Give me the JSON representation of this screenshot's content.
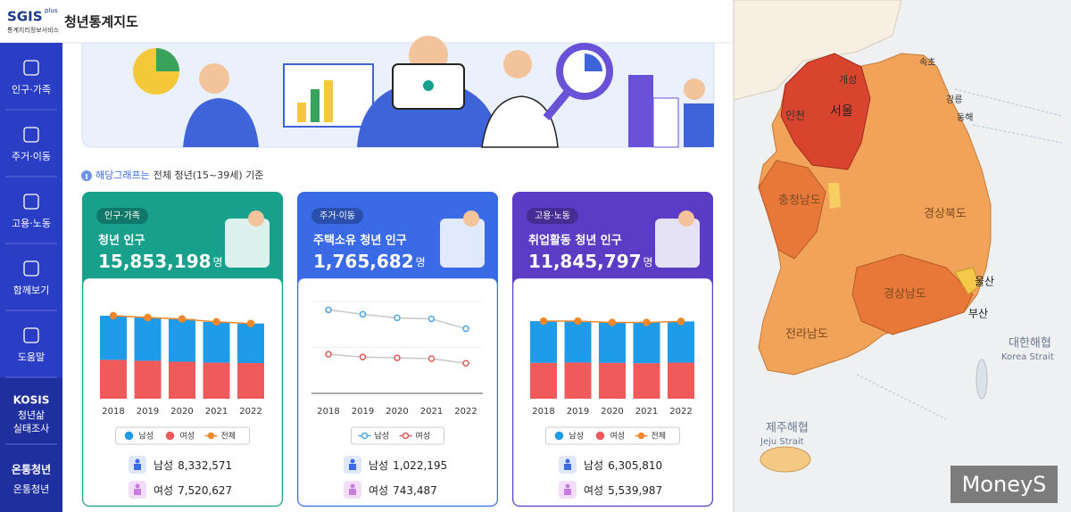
{
  "header": {
    "logo": "SGIS",
    "logo_sup": "plus",
    "logo_sub": "통계지리정보서비스",
    "title": "청년통계지도"
  },
  "sidebar": {
    "items": [
      "인구·가족",
      "주거·이동",
      "고용·노동",
      "함께보기",
      "도움말"
    ],
    "kosis": {
      "logo": "KOSIS",
      "lines": [
        "청년삶",
        "실태조사"
      ]
    },
    "ontong": {
      "logo": "온통청년",
      "label": "온통청년"
    }
  },
  "note": {
    "highlight": "해당그래프는",
    "text": "전체 청년(15~39세) 기준"
  },
  "cards": [
    {
      "tag": "인구·가족",
      "title": "청년 인구",
      "total": "15,853,198",
      "unit": "명",
      "color": "#17a08c",
      "summary": [
        {
          "label": "남성",
          "value": "8,332,571"
        },
        {
          "label": "여성",
          "value": "7,520,627"
        }
      ]
    },
    {
      "tag": "주거·이동",
      "title": "주택소유 청년 인구",
      "total": "1,765,682",
      "unit": "명",
      "color": "#3a6ae6",
      "summary": [
        {
          "label": "남성",
          "value": "1,022,195"
        },
        {
          "label": "여성",
          "value": "743,487"
        }
      ]
    },
    {
      "tag": "고용·노동",
      "title": "취업활동 청년 인구",
      "total": "11,845,797",
      "unit": "명",
      "color": "#5b3cc4",
      "summary": [
        {
          "label": "남성",
          "value": "6,305,810"
        },
        {
          "label": "여성",
          "value": "5,539,987"
        }
      ]
    }
  ],
  "chart_data": [
    {
      "type": "bar",
      "stacked": true,
      "categories": [
        "2018",
        "2019",
        "2020",
        "2021",
        "2022"
      ],
      "series": [
        {
          "name": "남성",
          "color": "#1e9be9",
          "values": [
            9300000,
            9100000,
            9000000,
            8600000,
            8332571
          ]
        },
        {
          "name": "여성",
          "color": "#f05a5a",
          "values": [
            8200000,
            8000000,
            7800000,
            7600000,
            7520627
          ]
        },
        {
          "name": "전체",
          "color": "#f0882a",
          "type": "line",
          "values": [
            17500000,
            17100000,
            16800000,
            16200000,
            15853198
          ]
        }
      ],
      "ylim": [
        0,
        22000000
      ]
    },
    {
      "type": "line",
      "categories": [
        "2018",
        "2019",
        "2020",
        "2021",
        "2022"
      ],
      "line_color": "#c8c8c8",
      "series": [
        {
          "name": "남성",
          "color": "#4aa6e0",
          "values": [
            1175000,
            1139000,
            1110000,
            1102000,
            1022195
          ]
        },
        {
          "name": "여성",
          "color": "#e05a5a",
          "values": [
            816000,
            794000,
            787000,
            780000,
            743487
          ]
        }
      ],
      "ylim": [
        500000,
        1300000
      ]
    },
    {
      "type": "bar",
      "stacked": true,
      "categories": [
        "2018",
        "2019",
        "2020",
        "2021",
        "2022"
      ],
      "series": [
        {
          "name": "남성",
          "color": "#1e9be9",
          "values": [
            6400000,
            6350000,
            6200000,
            6250000,
            6305810
          ]
        },
        {
          "name": "여성",
          "color": "#f05a5a",
          "values": [
            5500000,
            5550000,
            5500000,
            5450000,
            5539987
          ]
        },
        {
          "name": "전체",
          "color": "#f0882a",
          "type": "line",
          "values": [
            11900000,
            11900000,
            11700000,
            11700000,
            11845797
          ]
        }
      ],
      "ylim": [
        0,
        16000000
      ]
    }
  ],
  "map": {
    "labels": [
      "개성",
      "서울",
      "인천",
      "속초",
      "강릉",
      "동해",
      "경상북도",
      "충청남도",
      "경상남도",
      "전라남도",
      "울산",
      "부산",
      "대한해협",
      "Korea Strait",
      "제주해협",
      "Jeju Strait"
    ],
    "watermark": "MoneyS"
  }
}
